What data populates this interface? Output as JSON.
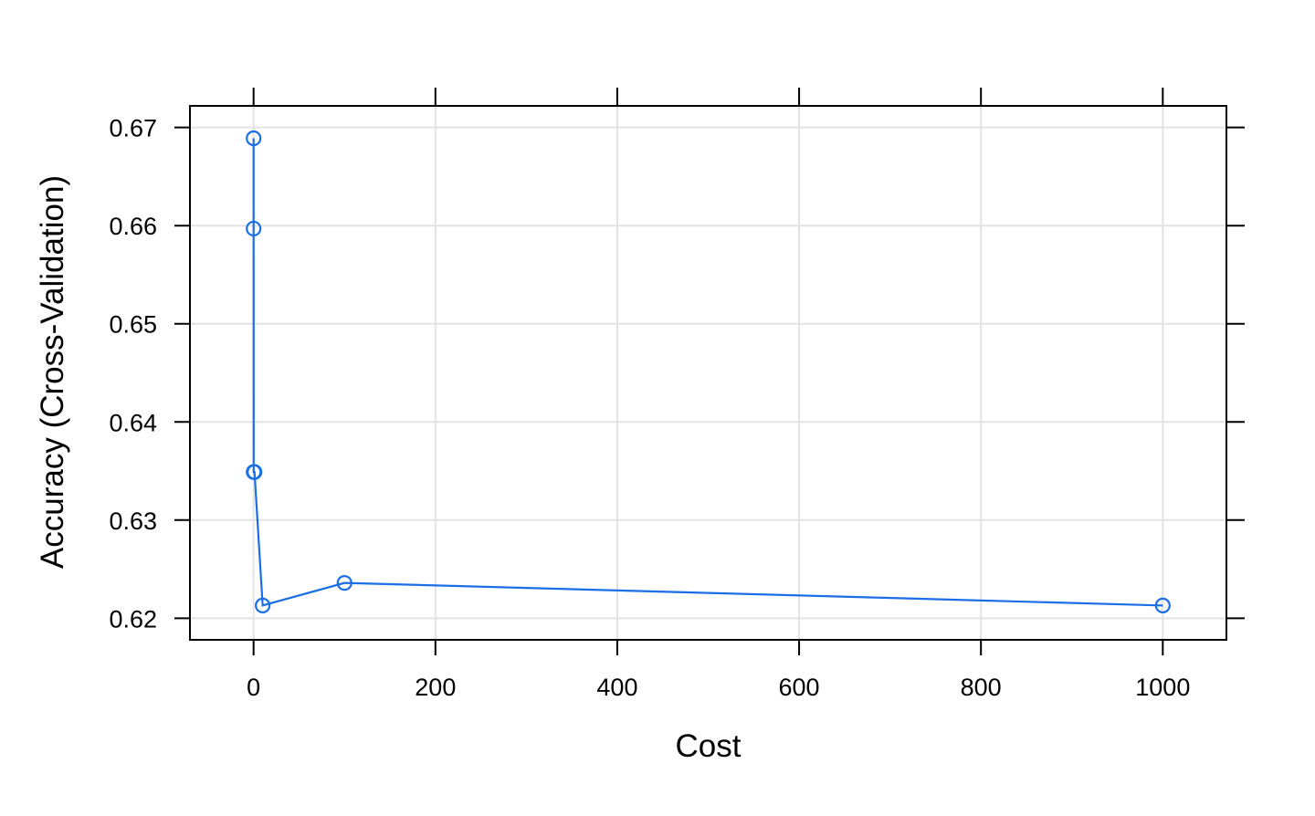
{
  "chart_data": {
    "type": "line",
    "title": "",
    "xlabel": "Cost",
    "ylabel": "Accuracy (Cross-Validation)",
    "xlim": [
      -70,
      1070
    ],
    "ylim": [
      0.6178,
      0.6722
    ],
    "x_ticks": [
      0,
      200,
      400,
      600,
      800,
      1000
    ],
    "y_ticks": [
      0.62,
      0.63,
      0.64,
      0.65,
      0.66,
      0.67
    ],
    "x_tick_labels": [
      "0",
      "200",
      "400",
      "600",
      "800",
      "1000"
    ],
    "y_tick_labels": [
      "0.62",
      "0.63",
      "0.64",
      "0.65",
      "0.66",
      "0.67"
    ],
    "grid": true,
    "markers": "open circles",
    "series": [
      {
        "color": "#1a6ee6",
        "x": [
          0.001,
          0.01,
          0.1,
          1,
          10,
          100,
          1000
        ],
        "y": [
          0.6689,
          0.6597,
          0.6349,
          0.6349,
          0.6213,
          0.6236,
          0.6213
        ]
      }
    ]
  }
}
